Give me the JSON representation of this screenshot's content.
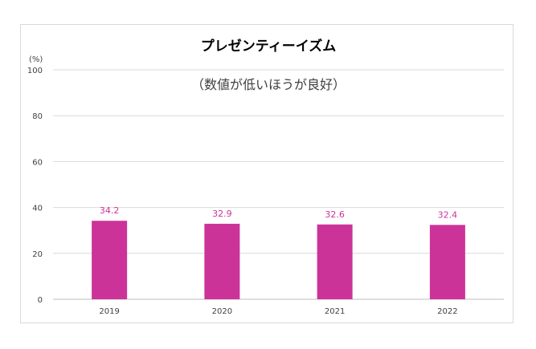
{
  "chart_data": {
    "type": "bar",
    "title": "プレゼンティーイズム",
    "note": "（数値が低いほうが良好）",
    "ylabel": "(%)",
    "xlabel": "",
    "categories": [
      "2019",
      "2020",
      "2021",
      "2022"
    ],
    "values": [
      34.2,
      32.9,
      32.6,
      32.4
    ],
    "ylim": [
      0,
      100
    ],
    "yticks": [
      0,
      20,
      40,
      60,
      80,
      100
    ],
    "grid": true,
    "legend": "none",
    "data_labels": true,
    "colors": {
      "bar": "#cc3399",
      "label": "#cc3399"
    }
  }
}
